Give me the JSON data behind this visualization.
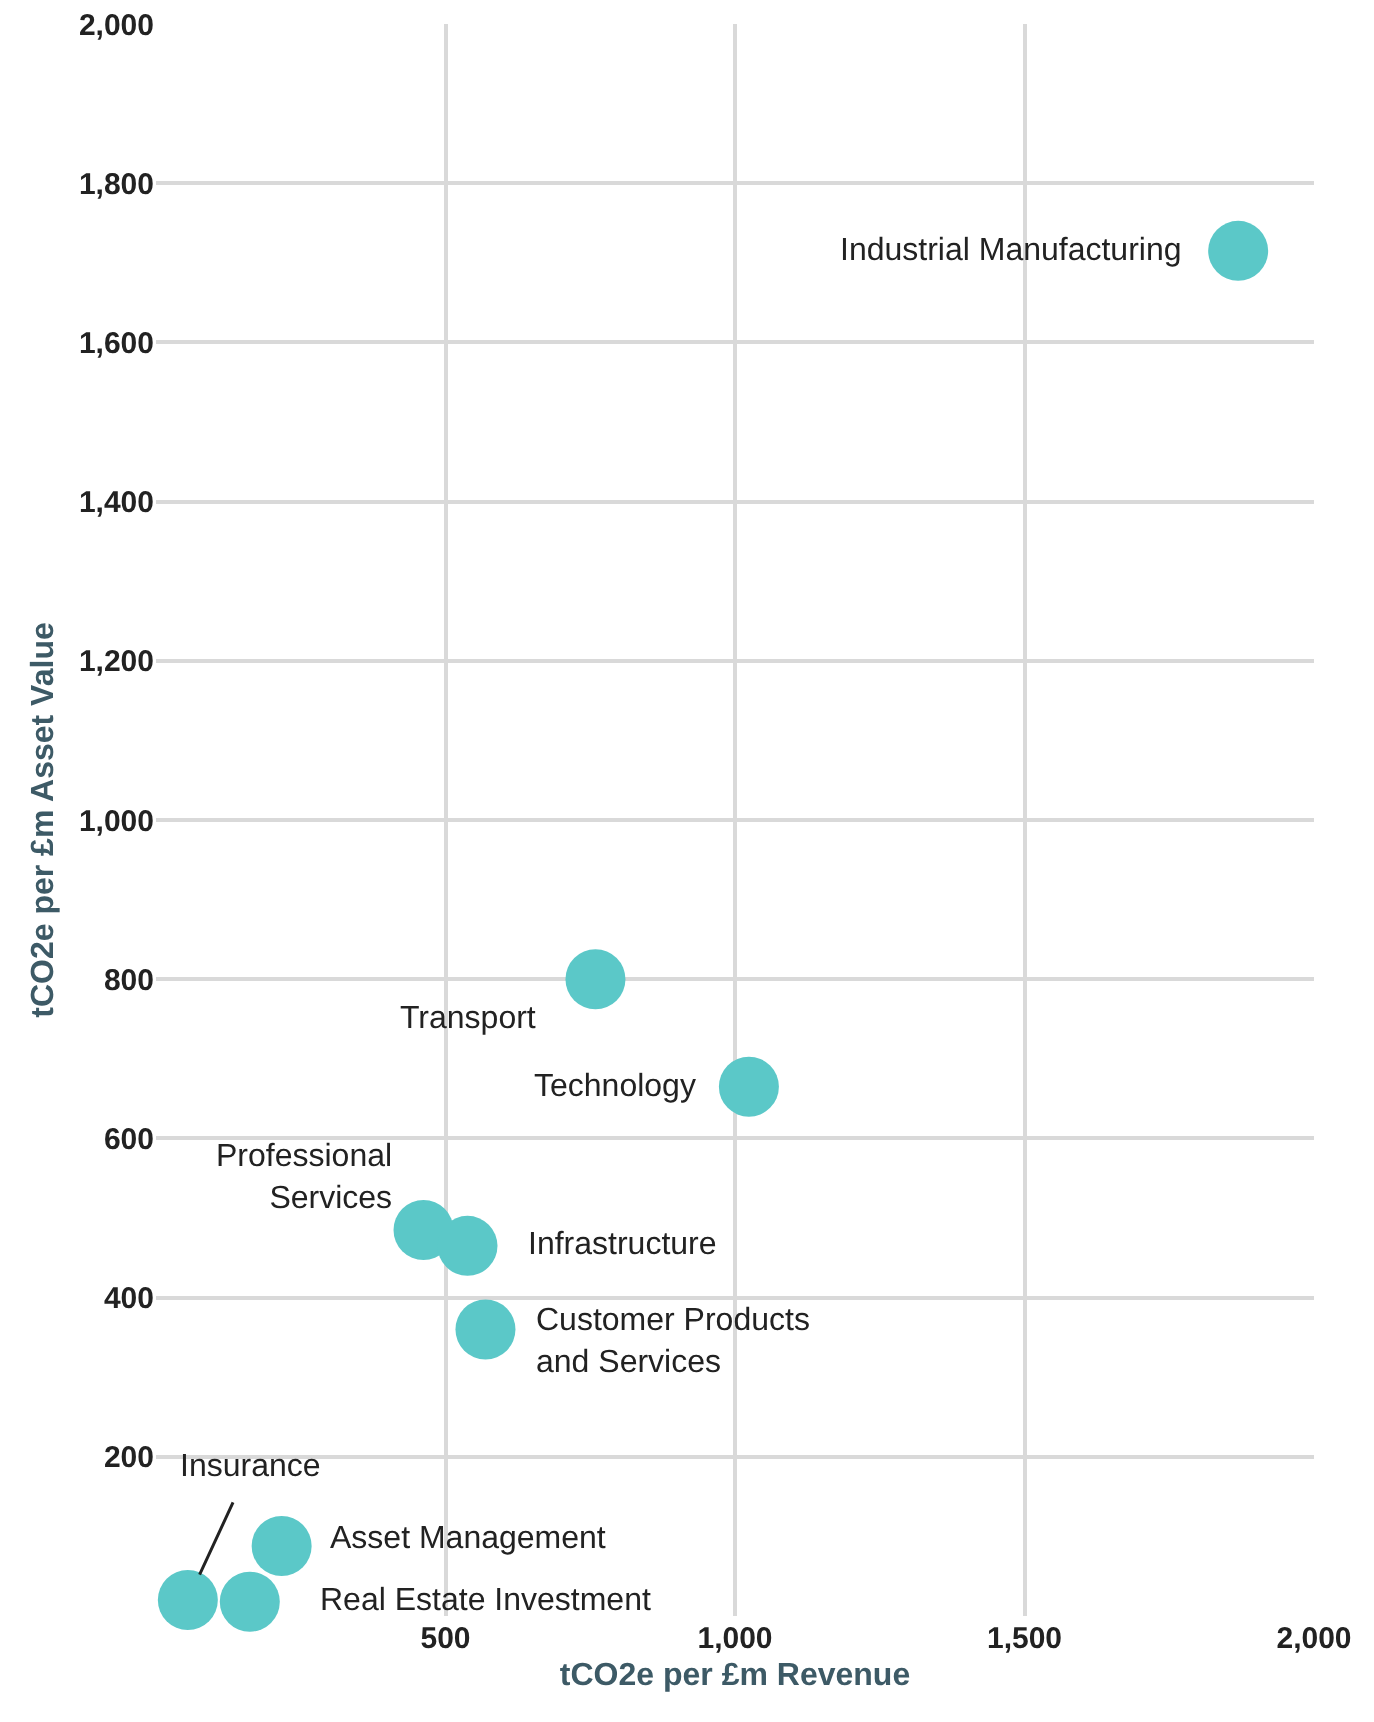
{
  "chart_data": {
    "type": "scatter",
    "xlabel": "tCO2e per £m Revenue",
    "ylabel": "tCO2e per £m Asset Value",
    "x": [
      1869,
      759,
      1024,
      462,
      538,
      569,
      217,
      55,
      162
    ],
    "values": [
      1715,
      800,
      665,
      485,
      465,
      360,
      88,
      20,
      18
    ],
    "color": "#5bc8c8",
    "marker": "circle",
    "grid": true,
    "xlim": [
      0,
      2000
    ],
    "xticks": [
      500,
      {
        "value": 1000,
        "label": "1,000"
      },
      {
        "value": 1500,
        "label": "1,500"
      },
      {
        "value": 2000,
        "label": "2,000"
      }
    ],
    "ylim": [
      0,
      2000
    ],
    "yticks": [
      200,
      400,
      600,
      800,
      {
        "value": 1000,
        "label": "1,000"
      },
      {
        "value": 1200,
        "label": "1,200"
      },
      {
        "value": 1400,
        "label": "1,400"
      },
      {
        "value": 1600,
        "label": "1,600"
      },
      {
        "value": 1800,
        "label": "1,800"
      },
      {
        "value": 2000,
        "label": "2,000"
      }
    ],
    "annotations": [
      {
        "text": "Industrial Manufacturing",
        "x": 1869,
        "y": 1715
      },
      {
        "text": "Transport",
        "x": 759,
        "y": 800
      },
      {
        "text": "Technology",
        "x": 1024,
        "y": 665
      },
      {
        "text": "Professional\nServices",
        "x": 462,
        "y": 485
      },
      {
        "text": "Infrastructure",
        "x": 538,
        "y": 465
      },
      {
        "text": "Customer Products\nand Services",
        "x": 569,
        "y": 360
      },
      {
        "text": "Asset Management",
        "x": 217,
        "y": 88
      },
      {
        "text": "Insurance",
        "x": 55,
        "y": 20
      },
      {
        "text": "Real Estate Investment",
        "x": 162,
        "y": 18
      }
    ]
  }
}
